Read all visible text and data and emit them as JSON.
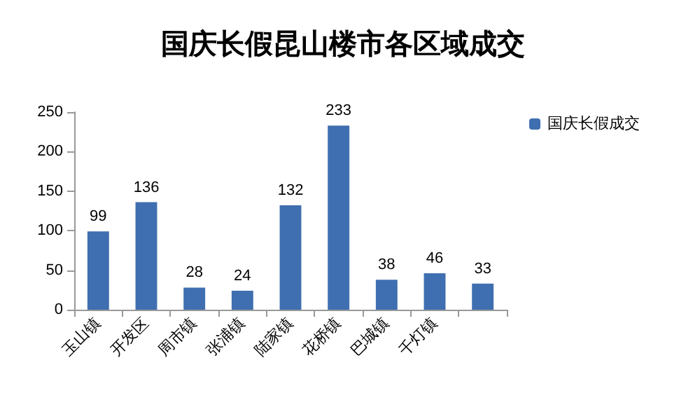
{
  "chart_data": {
    "type": "bar",
    "title": "国庆长假昆山楼市各区域成交",
    "categories": [
      "玉山镇",
      "开发区",
      "周市镇",
      "张浦镇",
      "陆家镇",
      "花桥镇",
      "巴城镇",
      "千灯镇",
      null
    ],
    "series": [
      {
        "name": "国庆长假成交",
        "color": "#3f6fb0",
        "values": [
          99,
          136,
          28,
          24,
          132,
          233,
          38,
          46,
          33
        ]
      }
    ],
    "ylim": [
      0,
      250
    ],
    "yticks": [
      0,
      50,
      100,
      150,
      200,
      250
    ],
    "data_labels": true,
    "legend": "top right",
    "grid": false
  }
}
